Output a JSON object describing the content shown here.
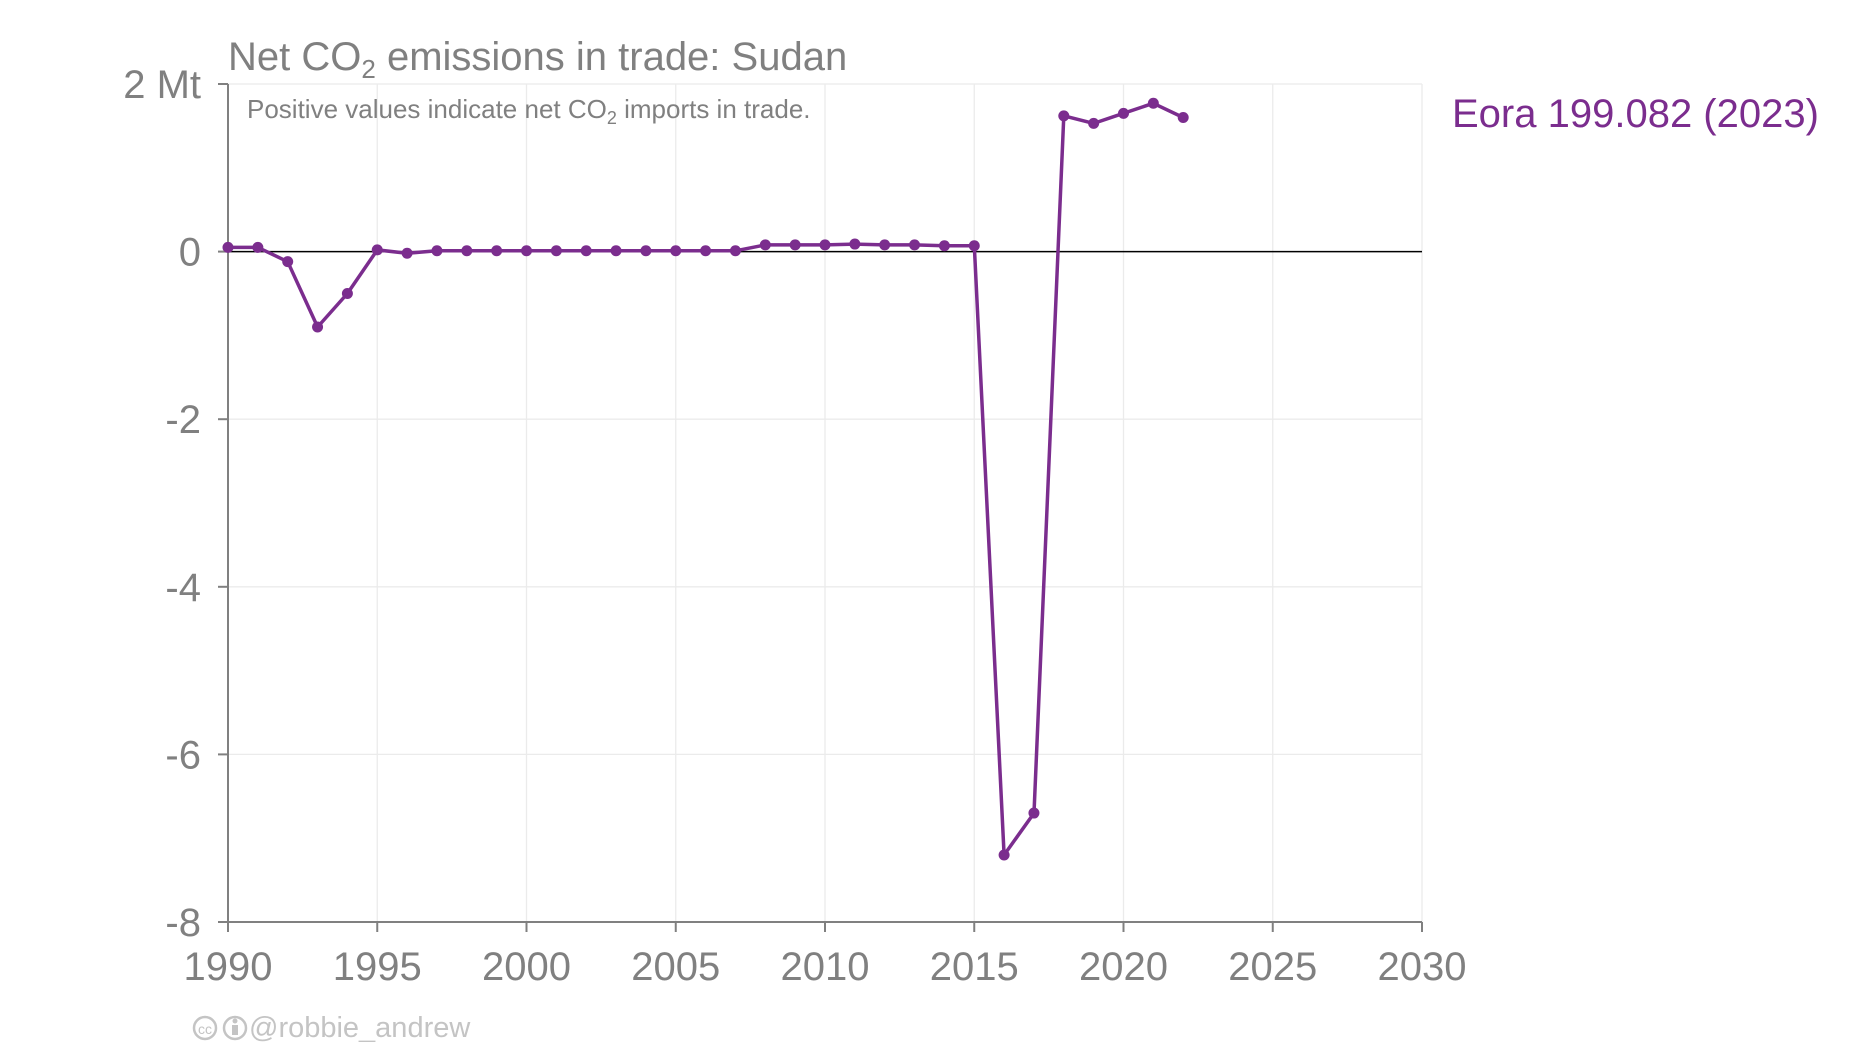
{
  "chart_data": {
    "type": "line",
    "title_main": "Net CO",
    "title_sub": "2",
    "title_rest": " emissions in trade: Sudan",
    "subtitle_main": "Positive values indicate net CO",
    "subtitle_sub": "2",
    "subtitle_rest": " imports in trade.",
    "xlim": [
      1990,
      2030
    ],
    "ylim": [
      -8,
      2
    ],
    "x_ticks": [
      1990,
      1995,
      2000,
      2005,
      2010,
      2015,
      2020,
      2025,
      2030
    ],
    "y_ticks": [
      {
        "value": 2,
        "label": "2 Mt"
      },
      {
        "value": 0,
        "label": "0"
      },
      {
        "value": -2,
        "label": "-2"
      },
      {
        "value": -4,
        "label": "-4"
      },
      {
        "value": -6,
        "label": "-6"
      },
      {
        "value": -8,
        "label": "-8"
      }
    ],
    "grid": true,
    "series": [
      {
        "name": "Eora 199.082 (2023)",
        "color": "#7b2d8e",
        "x": [
          1990,
          1991,
          1992,
          1993,
          1994,
          1995,
          1996,
          1997,
          1998,
          1999,
          2000,
          2001,
          2002,
          2003,
          2004,
          2005,
          2006,
          2007,
          2008,
          2009,
          2010,
          2011,
          2012,
          2013,
          2014,
          2015,
          2016,
          2017,
          2018,
          2019,
          2020,
          2021,
          2022
        ],
        "y": [
          0.05,
          0.05,
          -0.12,
          -0.9,
          -0.5,
          0.02,
          -0.02,
          0.01,
          0.01,
          0.01,
          0.01,
          0.01,
          0.01,
          0.01,
          0.01,
          0.01,
          0.01,
          0.01,
          0.08,
          0.08,
          0.08,
          0.09,
          0.08,
          0.08,
          0.07,
          0.07,
          -7.2,
          -6.7,
          1.62,
          1.53,
          1.65,
          1.77,
          1.6
        ]
      }
    ]
  },
  "credit": {
    "icons": [
      "cc-icon",
      "by-icon"
    ],
    "text": "@robbie_andrew"
  }
}
